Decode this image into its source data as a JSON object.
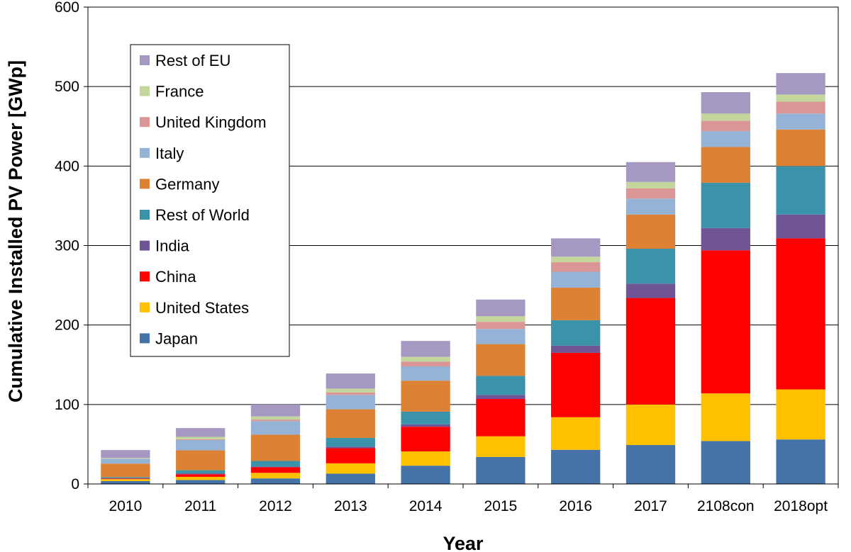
{
  "chart_data": {
    "type": "bar",
    "stacked": true,
    "title": "",
    "xlabel": "Year",
    "ylabel": "Cumulative Installed PV Power [GWp]",
    "ylim": [
      0,
      600
    ],
    "yticks": [
      0,
      100,
      200,
      300,
      400,
      500,
      600
    ],
    "grid": true,
    "legend_position": "top-left",
    "categories": [
      "2010",
      "2011",
      "2012",
      "2013",
      "2014",
      "2015",
      "2016",
      "2017",
      "2108con",
      "2018opt"
    ],
    "series": [
      {
        "name": "Japan",
        "color": "#4572A7",
        "values": [
          3.6,
          5,
          7,
          13,
          23,
          34,
          43,
          49,
          54,
          56
        ]
      },
      {
        "name": "United States",
        "color": "#FFC000",
        "values": [
          2.5,
          4,
          7,
          13,
          18,
          26,
          41,
          51,
          60,
          63
        ]
      },
      {
        "name": "China",
        "color": "#FF0000",
        "values": [
          0.8,
          3.3,
          7,
          19,
          31,
          47,
          81,
          134,
          180,
          190
        ]
      },
      {
        "name": "India",
        "color": "#6F5596",
        "values": [
          0.2,
          1,
          1,
          2,
          3,
          5,
          9,
          18,
          28,
          30
        ]
      },
      {
        "name": "Rest of World",
        "color": "#3B93A9",
        "values": [
          1.5,
          4,
          7,
          11,
          16,
          24,
          32,
          44,
          57,
          61
        ]
      },
      {
        "name": "Germany",
        "color": "#DD8135",
        "values": [
          17,
          25,
          33,
          36,
          39,
          40,
          41,
          43,
          45,
          46
        ]
      },
      {
        "name": "Italy",
        "color": "#95B3D7",
        "values": [
          6,
          13,
          17,
          18,
          18,
          19,
          20,
          20,
          20,
          20
        ]
      },
      {
        "name": "United Kingdom",
        "color": "#D99694",
        "values": [
          0.1,
          1,
          2,
          3,
          6,
          9,
          12,
          13,
          13,
          15
        ]
      },
      {
        "name": "France",
        "color": "#C3D69B",
        "values": [
          1,
          3,
          4,
          5,
          6,
          7,
          7,
          8,
          9,
          9
        ]
      },
      {
        "name": "Rest of EU",
        "color": "#A599C4",
        "values": [
          10,
          11,
          15,
          19,
          20,
          21,
          23,
          25,
          27,
          27
        ]
      }
    ],
    "legend_order": [
      "Rest of EU",
      "France",
      "United Kingdom",
      "Italy",
      "Germany",
      "Rest of World",
      "India",
      "China",
      "United States",
      "Japan"
    ]
  }
}
